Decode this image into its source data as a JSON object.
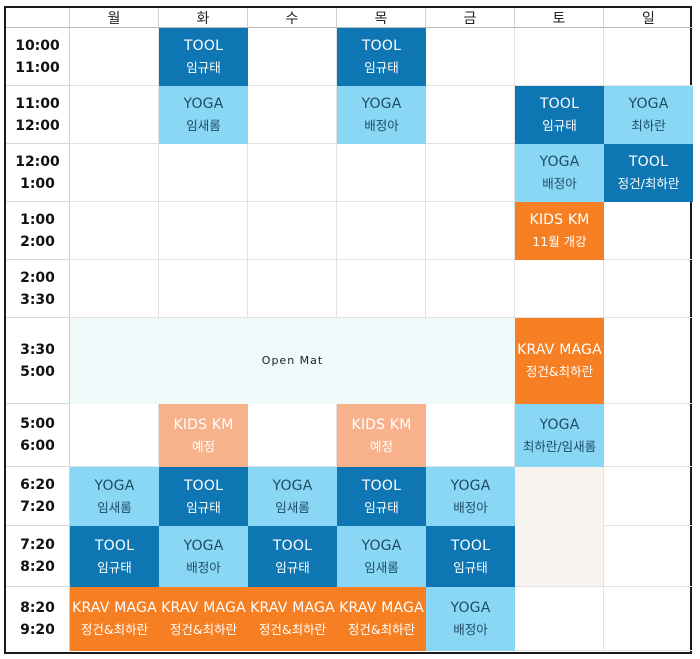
{
  "days": [
    "월",
    "화",
    "수",
    "목",
    "금",
    "토",
    "일"
  ],
  "times": [
    {
      "start": "10:00",
      "end": "11:00"
    },
    {
      "start": "11:00",
      "end": "12:00"
    },
    {
      "start": "12:00",
      "end": "1:00"
    },
    {
      "start": "1:00",
      "end": "2:00"
    },
    {
      "start": "2:00",
      "end": "3:30"
    },
    {
      "start": "3:30",
      "end": "5:00"
    },
    {
      "start": "5:00",
      "end": "6:00"
    },
    {
      "start": "6:20",
      "end": "7:20"
    },
    {
      "start": "7:20",
      "end": "8:20"
    },
    {
      "start": "8:20",
      "end": "9:20"
    }
  ],
  "classes": {
    "tue_1000": {
      "title": "TOOL",
      "instructor": "임규태"
    },
    "thu_1000": {
      "title": "TOOL",
      "instructor": "임규태"
    },
    "tue_1100": {
      "title": "YOGA",
      "instructor": "임새롬"
    },
    "thu_1100": {
      "title": "YOGA",
      "instructor": "배정아"
    },
    "sat_1100": {
      "title": "TOOL",
      "instructor": "임규태"
    },
    "sun_1100": {
      "title": "YOGA",
      "instructor": "최하란"
    },
    "sat_1200": {
      "title": "YOGA",
      "instructor": "배정아"
    },
    "sun_1200": {
      "title": "TOOL",
      "instructor": "정건/최하란"
    },
    "sat_0100": {
      "title": "KIDS KM",
      "instructor": "11월 개강"
    },
    "open_mat": {
      "title": "Open Mat"
    },
    "sat_0330": {
      "title": "KRAV MAGA",
      "instructor": "정건&최하란"
    },
    "tue_0500": {
      "title": "KIDS KM",
      "instructor": "예정"
    },
    "thu_0500": {
      "title": "KIDS KM",
      "instructor": "예정"
    },
    "sat_0500": {
      "title": "YOGA",
      "instructor": "최하란/임새롬"
    },
    "mon_0620": {
      "title": "YOGA",
      "instructor": "임새롬"
    },
    "tue_0620": {
      "title": "TOOL",
      "instructor": "임규태"
    },
    "wed_0620": {
      "title": "YOGA",
      "instructor": "임새롬"
    },
    "thu_0620": {
      "title": "TOOL",
      "instructor": "임규태"
    },
    "fri_0620": {
      "title": "YOGA",
      "instructor": "배정아"
    },
    "mon_0720": {
      "title": "TOOL",
      "instructor": "임규태"
    },
    "tue_0720": {
      "title": "YOGA",
      "instructor": "배정아"
    },
    "wed_0720": {
      "title": "TOOL",
      "instructor": "임규태"
    },
    "thu_0720": {
      "title": "YOGA",
      "instructor": "임새롬"
    },
    "fri_0720": {
      "title": "TOOL",
      "instructor": "임규태"
    },
    "mon_0820": {
      "title": "KRAV MAGA",
      "instructor": "정건&최하란"
    },
    "tue_0820": {
      "title": "KRAV MAGA",
      "instructor": "정건&최하란"
    },
    "wed_0820": {
      "title": "KRAV MAGA",
      "instructor": "정건&최하란"
    },
    "thu_0820": {
      "title": "KRAV MAGA",
      "instructor": "정건&최하란"
    },
    "fri_0820": {
      "title": "YOGA",
      "instructor": "배정아"
    }
  },
  "colors": {
    "tool": "#0e77b3",
    "yoga": "#8ad7f5",
    "krav": "#f57f22",
    "kids_planned": "#f7b18b",
    "open_mat": "#f0f9fa"
  }
}
